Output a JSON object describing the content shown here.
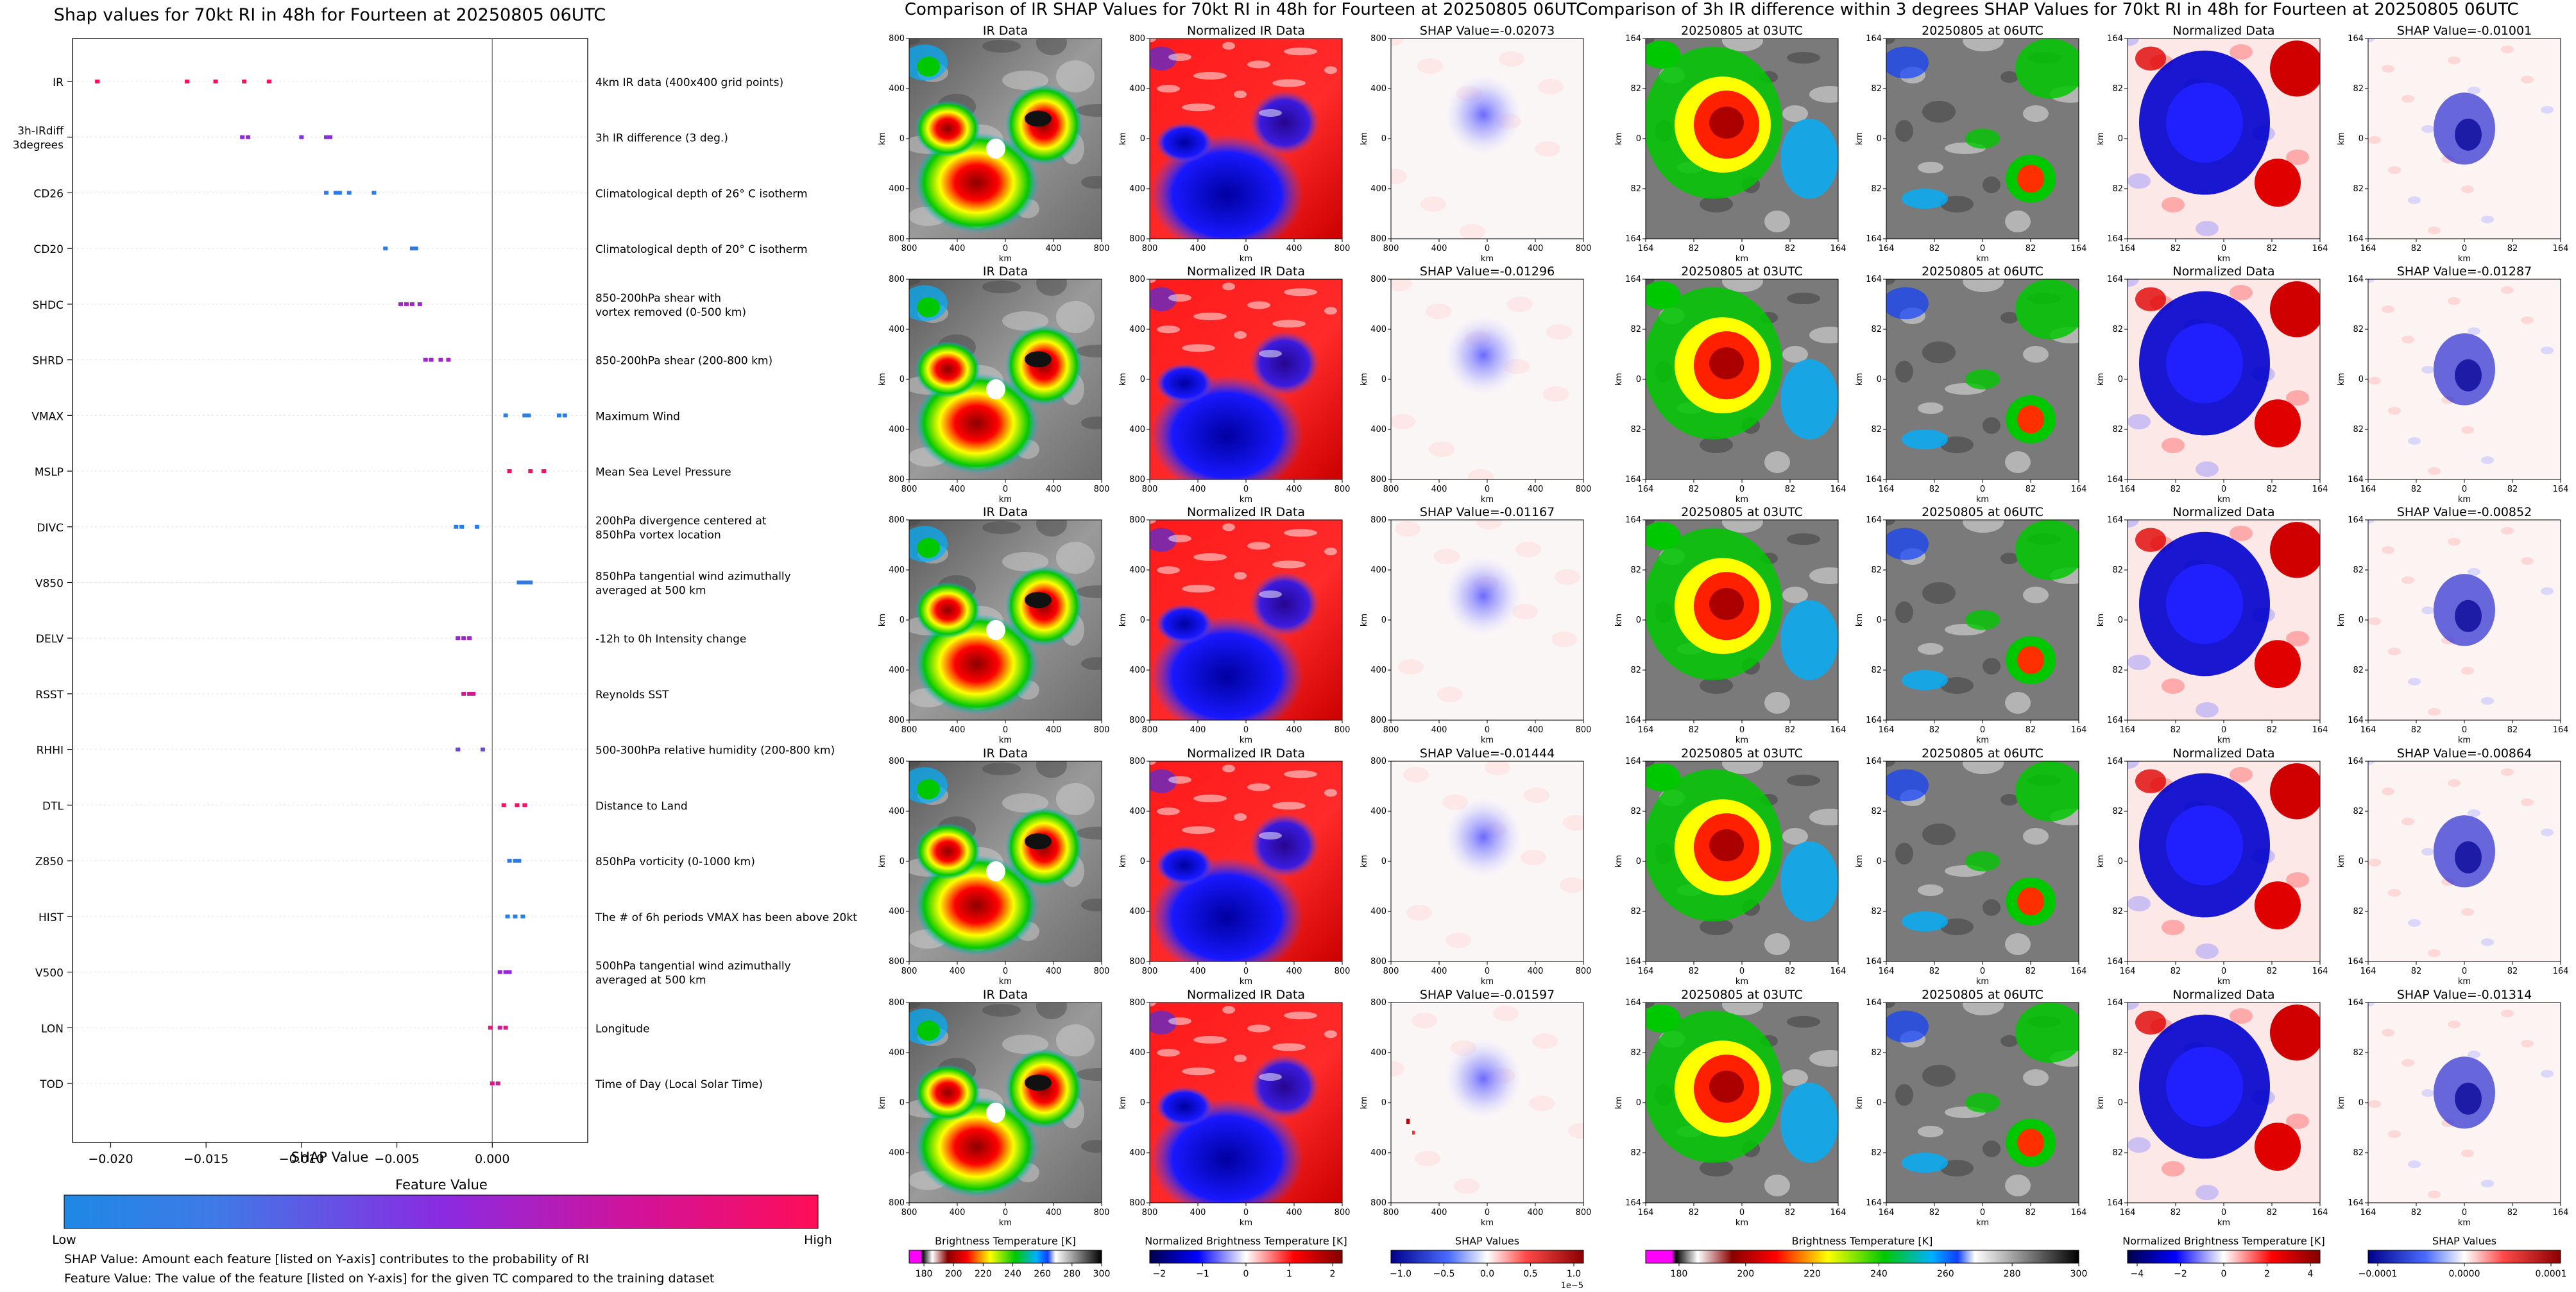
{
  "shap_panel": {
    "title": "Shap values for 70kt RI in 48h for Fourteen at 20250805 06UTC",
    "xlabel": "SHAP Value",
    "colorbar_title": "Feature Value",
    "low_label": "Low",
    "high_label": "High",
    "caption_line1": "SHAP Value: Amount each feature [listed on Y-axis] contributes to the probability of RI",
    "caption_line2": "Feature Value: The value of the feature [listed on Y-axis] for the given TC compared to the training dataset"
  },
  "ir_panel": {
    "title": "Comparison of IR SHAP Values for 70kt RI in 48h for Fourteen at 20250805 06UTC",
    "col_titles": [
      "IR Data",
      "Normalized IR Data"
    ],
    "shap_titles": [
      "SHAP Value=-0.02073",
      "SHAP Value=-0.01296",
      "SHAP Value=-0.01167",
      "SHAP Value=-0.01444",
      "SHAP Value=-0.01597"
    ],
    "axis_label": "km",
    "ticks_x": [
      "800",
      "400",
      "0",
      "400",
      "800"
    ],
    "ticks_y": [
      "800",
      "400",
      "0",
      "400",
      "800"
    ],
    "cbar1": {
      "label": "Brightness Temperature [K]",
      "ticks": [
        "180",
        "200",
        "220",
        "240",
        "260",
        "280",
        "300"
      ]
    },
    "cbar2": {
      "label": "Normalized Brightness Temperature [K]",
      "ticks": [
        "−2",
        "−1",
        "0",
        "1",
        "2"
      ]
    },
    "cbar3": {
      "label": "SHAP Values",
      "ticks": [
        "−1.0",
        "−0.5",
        "0.0",
        "0.5",
        "1.0"
      ],
      "exponent": "1e−5"
    }
  },
  "diff_panel": {
    "title": "Comparison of 3h IR difference within 3 degrees SHAP Values for 70kt RI in 48h for Fourteen at 20250805 06UTC",
    "col_titles": [
      "20250805 at 03UTC",
      "20250805 at 06UTC",
      "Normalized Data"
    ],
    "shap_titles": [
      "SHAP Value=-0.01001",
      "SHAP Value=-0.01287",
      "SHAP Value=-0.00852",
      "SHAP Value=-0.00864",
      "SHAP Value=-0.01314"
    ],
    "axis_label": "km",
    "ticks_x": [
      "164",
      "82",
      "0",
      "82",
      "164"
    ],
    "ticks_y": [
      "164",
      "82",
      "0",
      "82",
      "164"
    ],
    "cbar1": {
      "label": "Brightness Temperature [K]",
      "ticks": [
        "180",
        "200",
        "220",
        "240",
        "260",
        "280",
        "300"
      ]
    },
    "cbar2": {
      "label": "Normalized Brightness Temperature [K]",
      "ticks": [
        "−4",
        "−2",
        "0",
        "2",
        "4"
      ]
    },
    "cbar3": {
      "label": "SHAP Values",
      "ticks": [
        "−0.0001",
        "0.0000",
        "0.0001"
      ]
    }
  },
  "colors": {
    "low": "#1e88e5",
    "high": "#ff0d57"
  },
  "chart_data": [
    {
      "type": "scatter",
      "title": "Shap values for 70kt RI in 48h for Fourteen at 20250805 06UTC",
      "xlabel": "SHAP Value",
      "xlim": [
        -0.022,
        0.005
      ],
      "xticks": [
        "−0.020",
        "−0.015",
        "−0.010",
        "−0.005",
        "0.000"
      ],
      "features": [
        {
          "name": "IR",
          "desc": "4km IR data (400x400 grid points)",
          "values": [
            -0.0207,
            -0.016,
            -0.0145,
            -0.013,
            -0.0117
          ],
          "feature_values": [
            0.98,
            0.98,
            0.95,
            0.97,
            0.96
          ]
        },
        {
          "name": "3h-IRdiff\n3degrees",
          "desc": "3h IR difference (3 deg.)",
          "values": [
            -0.0131,
            -0.0128,
            -0.01,
            -0.0087,
            -0.0085
          ],
          "feature_values": [
            0.5,
            0.55,
            0.45,
            0.5,
            0.5
          ]
        },
        {
          "name": "CD26",
          "desc": "Climatological depth of 26° C isotherm",
          "values": [
            -0.0087,
            -0.0082,
            -0.008,
            -0.0075,
            -0.0062
          ],
          "feature_values": [
            0.05,
            0.08,
            0.06,
            0.05,
            0.05
          ]
        },
        {
          "name": "CD20",
          "desc": "Climatological depth of 20° C isotherm",
          "values": [
            -0.0056,
            -0.0042,
            -0.004
          ],
          "feature_values": [
            0.05,
            0.08,
            0.06
          ]
        },
        {
          "name": "SHDC",
          "desc": "850-200hPa shear with\nvortex removed (0-500 km)",
          "values": [
            -0.0048,
            -0.0045,
            -0.0042,
            -0.0038
          ],
          "feature_values": [
            0.6,
            0.62,
            0.6,
            0.58
          ]
        },
        {
          "name": "SHRD",
          "desc": "850-200hPa shear (200-800 km)",
          "values": [
            -0.0035,
            -0.0032,
            -0.0027,
            -0.0023
          ],
          "feature_values": [
            0.58,
            0.6,
            0.6,
            0.62
          ]
        },
        {
          "name": "VMAX",
          "desc": "Maximum Wind",
          "values": [
            0.0007,
            0.0017,
            0.0019,
            0.0035,
            0.0038
          ],
          "feature_values": [
            0.05,
            0.05,
            0.06,
            0.05,
            0.05
          ]
        },
        {
          "name": "MSLP",
          "desc": "Mean Sea Level Pressure",
          "values": [
            0.0009,
            0.002,
            0.0027
          ],
          "feature_values": [
            0.95,
            0.95,
            0.95
          ]
        },
        {
          "name": "DIVC",
          "desc": "200hPa divergence centered at\n850hPa vortex location",
          "values": [
            -0.0019,
            -0.0016,
            -0.0008
          ],
          "feature_values": [
            0.05,
            0.05,
            0.06
          ]
        },
        {
          "name": "V850",
          "desc": "850hPa tangential wind azimuthally\naveraged at 500 km",
          "values": [
            0.0014,
            0.0016,
            0.0018,
            0.002
          ],
          "feature_values": [
            0.08,
            0.08,
            0.08,
            0.08
          ]
        },
        {
          "name": "DELV",
          "desc": "-12h to 0h Intensity change",
          "values": [
            -0.0018,
            -0.0015,
            -0.0012
          ],
          "feature_values": [
            0.55,
            0.6,
            0.58
          ]
        },
        {
          "name": "RSST",
          "desc": "Reynolds SST",
          "values": [
            -0.0015,
            -0.0012,
            -0.001
          ],
          "feature_values": [
            0.8,
            0.8,
            0.82
          ]
        },
        {
          "name": "RHHI",
          "desc": "500-300hPa relative humidity (200-800 km)",
          "values": [
            -0.0018,
            -0.0005
          ],
          "feature_values": [
            0.35,
            0.35
          ]
        },
        {
          "name": "DTL",
          "desc": "Distance to Land",
          "values": [
            0.0006,
            0.0013,
            0.0017
          ],
          "feature_values": [
            0.96,
            0.95,
            0.96
          ]
        },
        {
          "name": "Z850",
          "desc": "850hPa vorticity (0-1000 km)",
          "values": [
            0.0009,
            0.0012,
            0.0014
          ],
          "feature_values": [
            0.08,
            0.08,
            0.08
          ]
        },
        {
          "name": "HIST",
          "desc": "The # of 6h periods VMAX has been above 20kt",
          "values": [
            0.0008,
            0.0012,
            0.0016
          ],
          "feature_values": [
            0.05,
            0.05,
            0.05
          ]
        },
        {
          "name": "V500",
          "desc": "500hPa tangential wind azimuthally\naveraged at 500 km",
          "values": [
            0.0004,
            0.0007,
            0.0009
          ],
          "feature_values": [
            0.55,
            0.52,
            0.55
          ]
        },
        {
          "name": "LON",
          "desc": "Longitude",
          "values": [
            -0.0001,
            0.0004,
            0.0007
          ],
          "feature_values": [
            0.9,
            0.75,
            0.9
          ]
        },
        {
          "name": "TOD",
          "desc": "Time of Day (Local Solar Time)",
          "values": [
            0.0,
            0.0003
          ],
          "feature_values": [
            0.85,
            0.8
          ]
        }
      ]
    },
    {
      "type": "heatmap",
      "title": "Comparison of IR SHAP Values for 70kt RI in 48h for Fourteen at 20250805 06UTC",
      "rows": 5,
      "shap_values": [
        -0.02073,
        -0.01296,
        -0.01167,
        -0.01444,
        -0.01597
      ]
    },
    {
      "type": "heatmap",
      "title": "Comparison of 3h IR difference within 3 degrees SHAP Values for 70kt RI in 48h for Fourteen at 20250805 06UTC",
      "rows": 5,
      "shap_values": [
        -0.01001,
        -0.01287,
        -0.00852,
        -0.00864,
        -0.01314
      ]
    }
  ]
}
